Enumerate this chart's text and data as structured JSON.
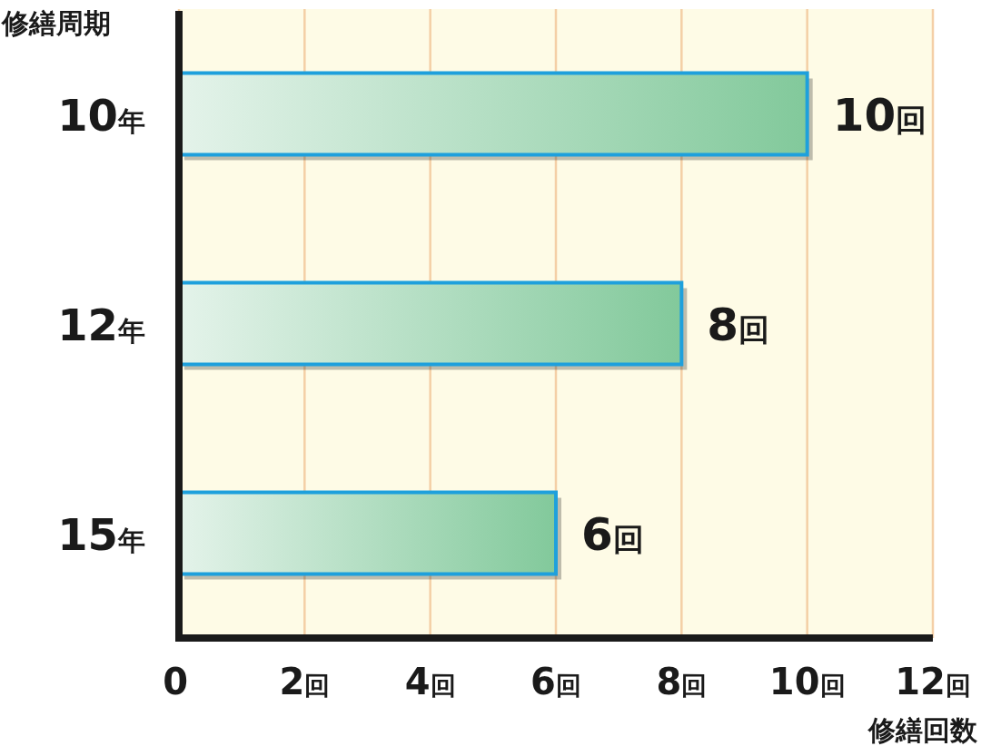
{
  "chart_data": {
    "type": "bar",
    "orientation": "horizontal",
    "ylabel": "修繕周期",
    "xlabel": "修繕回数",
    "categories": [
      "10年",
      "12年",
      "15年"
    ],
    "values": [
      10,
      8,
      6
    ],
    "value_labels": [
      "10回",
      "8回",
      "6回"
    ],
    "color": "#1ea0dc",
    "xlim": [
      0,
      12
    ],
    "xticks": [
      0,
      {
        "value": 2,
        "label": "2回"
      },
      {
        "value": 4,
        "label": "4回"
      },
      {
        "value": 6,
        "label": "6回"
      },
      {
        "value": 8,
        "label": "8回"
      },
      {
        "value": 10,
        "label": "10回"
      },
      {
        "value": 12,
        "label": "12回"
      }
    ],
    "grid": "x"
  }
}
